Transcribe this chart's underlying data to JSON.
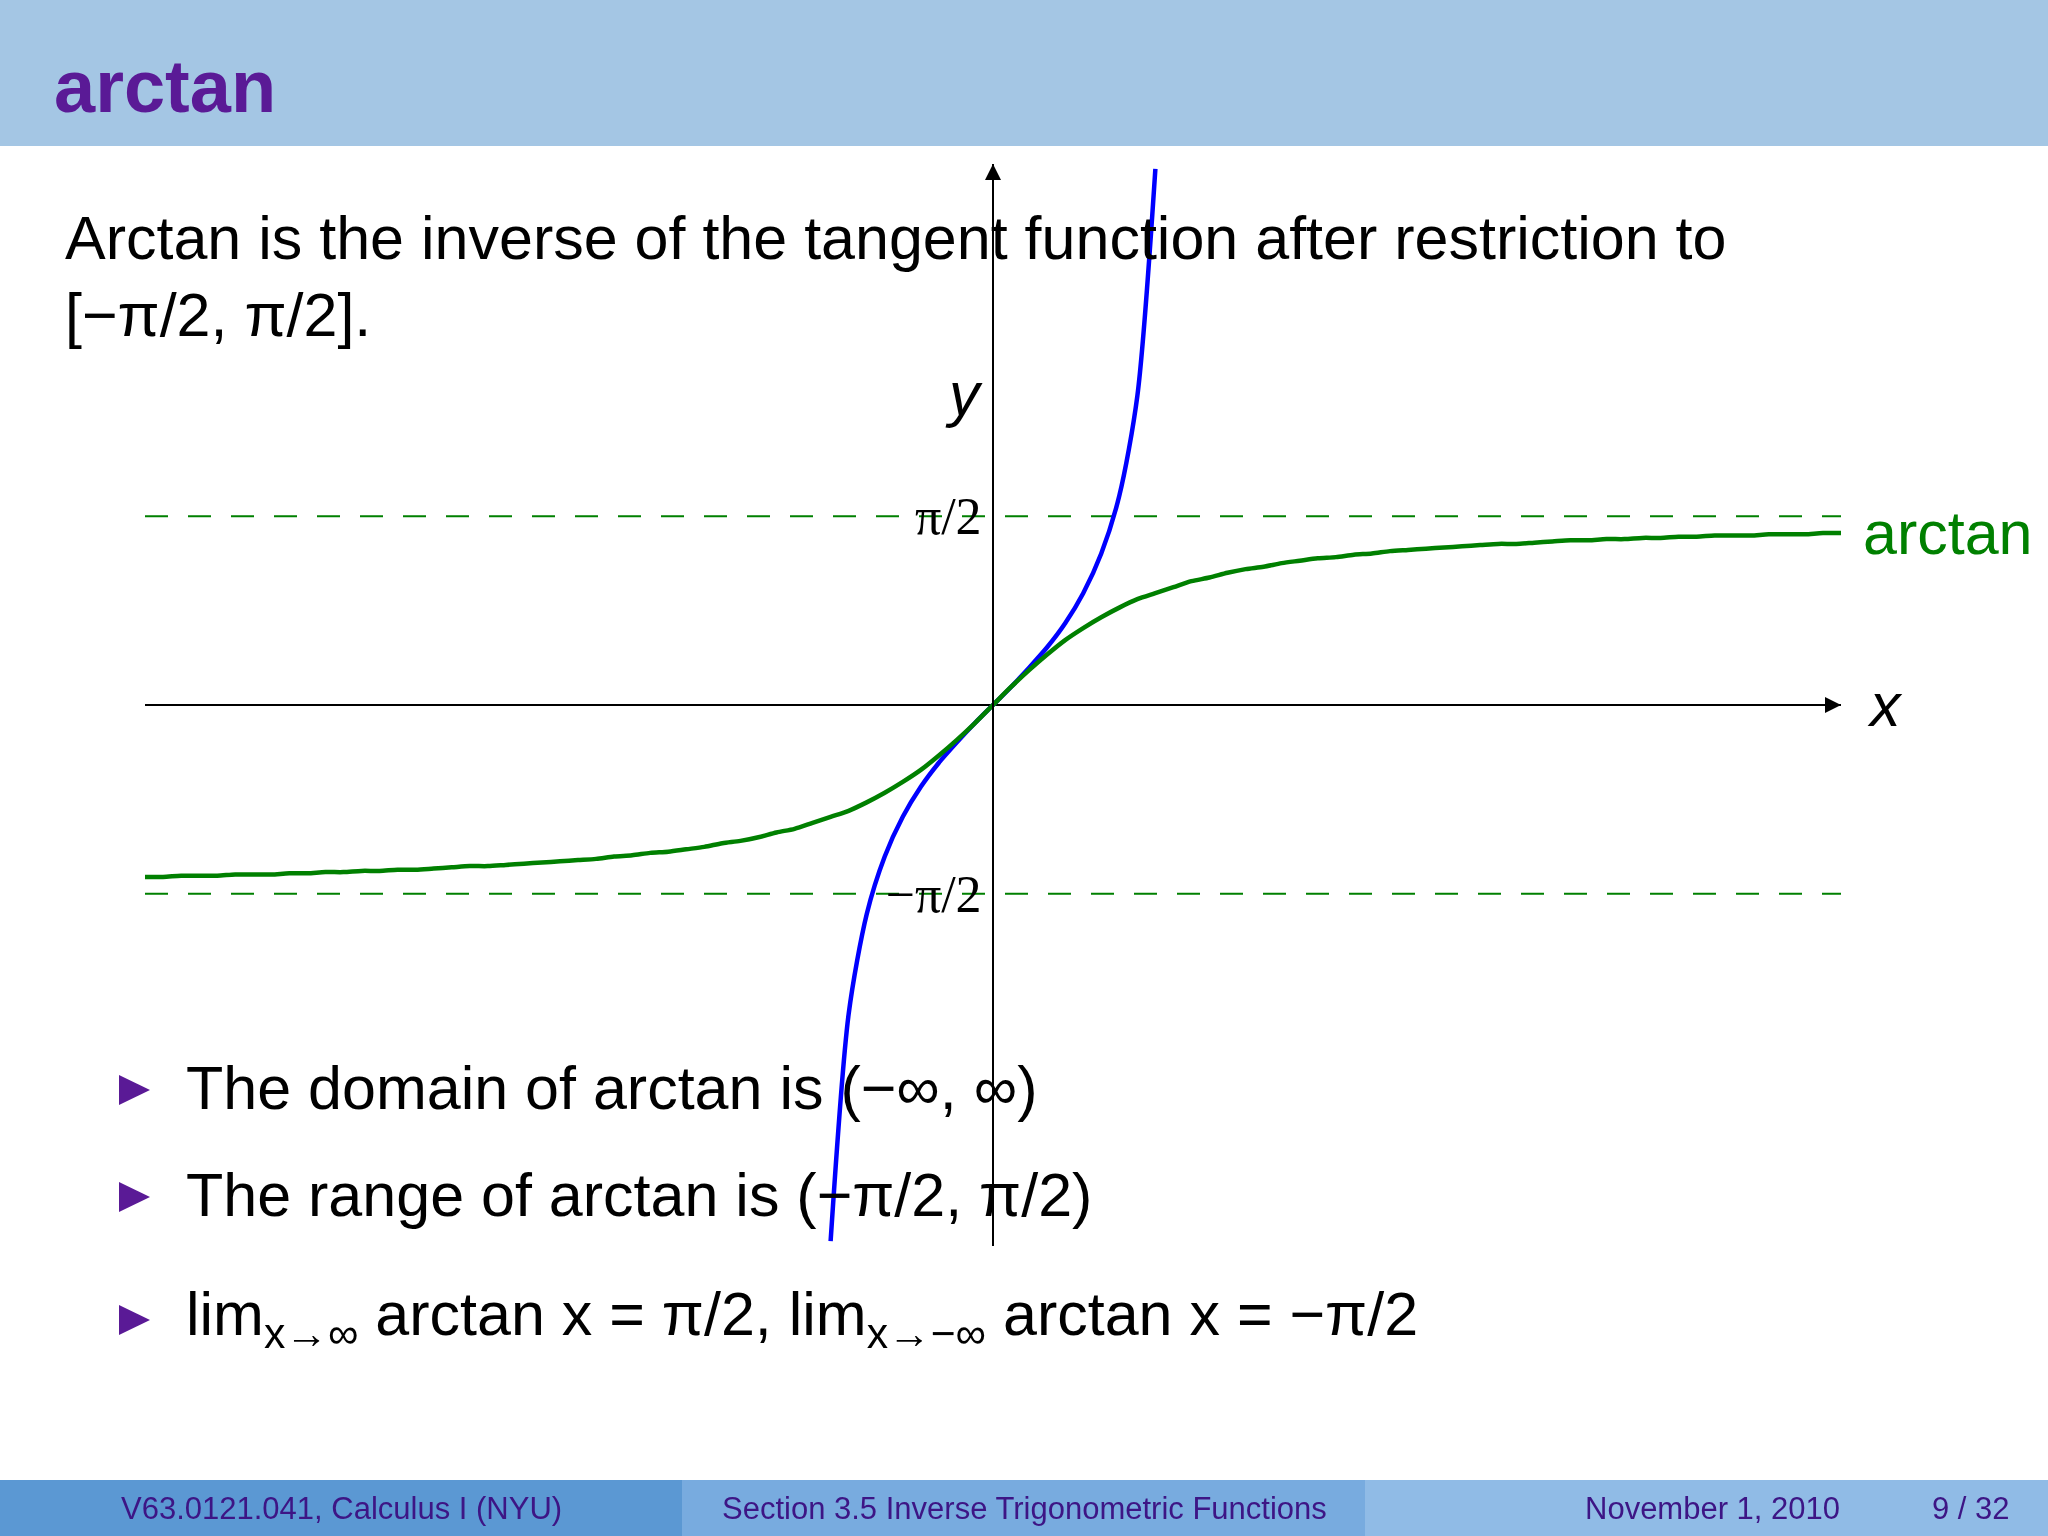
{
  "chart_data": {
    "type": "line",
    "title": "arctan",
    "subtitle": "Arctan is the inverse of the tangent function after restriction to [−π/2, π/2].",
    "xlabel": "x",
    "ylabel": "y",
    "categories": [
      null,
      null,
      null,
      null,
      null,
      null,
      null,
      null,
      null,
      null,
      null,
      null,
      null,
      null,
      null,
      null,
      null,
      null,
      null,
      null,
      null,
      null,
      null,
      null,
      null,
      null,
      null,
      null,
      null,
      null,
      null,
      null,
      null,
      null,
      null,
      null,
      null,
      null,
      null,
      null,
      null,
      null,
      null,
      null,
      null,
      null,
      null,
      null,
      null,
      null,
      null,
      null,
      null,
      null,
      null,
      null,
      null,
      null,
      null,
      null,
      null,
      null,
      null,
      null,
      null,
      null,
      null,
      null,
      null,
      null,
      null,
      null,
      null,
      null,
      null,
      null,
      null,
      null,
      null,
      null,
      null,
      null,
      null,
      null,
      null,
      null,
      null,
      null,
      null,
      null,
      null,
      null,
      null,
      null,
      null
    ],
    "series": [
      {
        "color": "#0000ff",
        "values": [
          null,
          null,
          null,
          null,
          null,
          null,
          null,
          null,
          null,
          null,
          null,
          null,
          null,
          null,
          null,
          null,
          null,
          null,
          null,
          null,
          null,
          null,
          null,
          null,
          null,
          null,
          null,
          null,
          null,
          null,
          null,
          null,
          null,
          null,
          null,
          null,
          null,
          null,
          -4.46,
          -2.57,
          -1.74,
          -1.26,
          -0.93,
          -0.68,
          -0.48,
          -0.31,
          -0.15,
          0,
          0.15,
          0.31,
          0.48,
          0.68,
          0.93,
          1.26,
          1.74,
          2.57,
          4.46,
          null,
          null,
          null,
          null,
          null,
          null,
          null,
          null,
          null,
          null,
          null,
          null,
          null,
          null,
          null,
          null,
          null,
          null,
          null,
          null,
          null,
          null,
          null,
          null,
          null,
          null,
          null,
          null,
          null,
          null,
          null,
          null,
          null,
          null,
          null,
          null,
          null,
          null
        ]
      },
      {
        "name": "arctan",
        "color": "#008000",
        "values": [
          -1.43,
          -1.43,
          -1.42,
          -1.42,
          -1.42,
          -1.41,
          -1.41,
          -1.41,
          -1.4,
          -1.4,
          -1.39,
          -1.39,
          -1.38,
          -1.38,
          -1.37,
          -1.37,
          -1.36,
          -1.35,
          -1.34,
          -1.34,
          -1.33,
          -1.32,
          -1.31,
          -1.3,
          -1.29,
          -1.28,
          -1.26,
          -1.25,
          -1.23,
          -1.22,
          -1.2,
          -1.18,
          -1.15,
          -1.13,
          -1.1,
          -1.06,
          -1.03,
          -0.98,
          -0.93,
          -0.88,
          -0.81,
          -0.73,
          -0.64,
          -0.54,
          -0.42,
          -0.29,
          -0.15,
          0,
          0.15,
          0.29,
          0.42,
          0.54,
          0.64,
          0.73,
          0.81,
          0.88,
          0.93,
          0.98,
          1.03,
          1.06,
          1.1,
          1.13,
          1.15,
          1.18,
          1.2,
          1.22,
          1.23,
          1.25,
          1.26,
          1.28,
          1.29,
          1.3,
          1.31,
          1.32,
          1.33,
          1.34,
          1.34,
          1.35,
          1.36,
          1.37,
          1.37,
          1.38,
          1.38,
          1.39,
          1.39,
          1.4,
          1.4,
          1.41,
          1.41,
          1.41,
          1.42,
          1.42,
          1.42,
          1.43,
          1.43
        ]
      }
    ],
    "ylim": [
      -4.5,
      4.5
    ],
    "yticks": [
      {
        "value": 1.57,
        "label": "π/2"
      },
      {
        "value": -1.57,
        "label": "−π/2"
      }
    ],
    "ref_lines": [
      {
        "axis": "y",
        "value": 1.57,
        "color": "#008000",
        "line_style": "dashed"
      },
      {
        "axis": "y",
        "value": -1.57,
        "color": "#008000",
        "line_style": "dashed"
      }
    ],
    "tick_labels": "y",
    "annotations": [
      "The domain of arctan is (−∞, ∞)",
      "The range of arctan is (−π/2, π/2)",
      "lim$_{x→∞}$ arctan x = π/2, lim$_{x→−∞}$ arctan x = −π/2",
      "V63.0121.041, Calculus I (NYU)",
      "Section 3.5 Inverse Trigonometric Functions",
      "November 1, 2010",
      "9 / 32"
    ]
  }
}
